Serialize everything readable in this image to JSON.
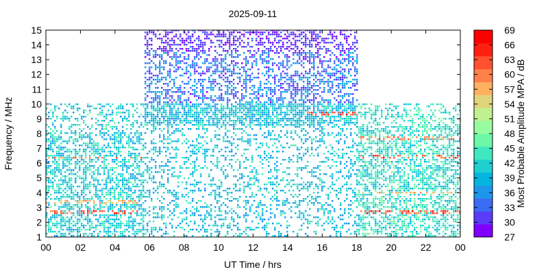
{
  "chart_data": {
    "type": "heatmap",
    "title": "2025-09-11",
    "xlabel": "UT Time / hrs",
    "ylabel": "Frequency / MHz",
    "xlim": [
      0,
      24
    ],
    "ylim": [
      1,
      15
    ],
    "x_ticks": [
      "00",
      "02",
      "04",
      "06",
      "08",
      "10",
      "12",
      "14",
      "16",
      "18",
      "20",
      "22",
      "00"
    ],
    "y_ticks": [
      "1",
      "2",
      "3",
      "4",
      "5",
      "6",
      "7",
      "8",
      "9",
      "10",
      "11",
      "12",
      "13",
      "14",
      "15"
    ],
    "colorbar": {
      "label": "Most Probable Amplitude MPA / dB",
      "range": [
        27,
        69
      ],
      "ticks": [
        "27",
        "30",
        "33",
        "36",
        "39",
        "42",
        "45",
        "48",
        "51",
        "54",
        "57",
        "60",
        "63",
        "66",
        "69"
      ],
      "colors": [
        "#8000ff",
        "#5a3cf8",
        "#3a6cf4",
        "#1e96eb",
        "#06b4e0",
        "#20d0d0",
        "#40e8c0",
        "#6cf8a8",
        "#98fca0",
        "#c0f090",
        "#e0d47c",
        "#ffb060",
        "#ff8048",
        "#ff5030",
        "#ff2010",
        "#ff0000"
      ]
    },
    "regions": [
      {
        "name": "night-low-band",
        "x": [
          0,
          5.6
        ],
        "y": [
          1,
          10
        ],
        "level_db": 41
      },
      {
        "name": "day-high-band",
        "x": [
          5.6,
          18
        ],
        "y": [
          10,
          15
        ],
        "level_db": 34
      },
      {
        "name": "day-mid-band",
        "x": [
          5.6,
          18
        ],
        "y": [
          1,
          10
        ],
        "level_db": 40
      },
      {
        "name": "evening-low-band",
        "x": [
          18,
          24
        ],
        "y": [
          1,
          10
        ],
        "level_db": 43
      }
    ],
    "hot_bands": [
      {
        "x": [
          0,
          5.5
        ],
        "y": [
          2.5,
          2.8
        ],
        "level_db": 63
      },
      {
        "x": [
          0,
          5.5
        ],
        "y": [
          3.2,
          3.4
        ],
        "level_db": 57
      },
      {
        "x": [
          0,
          5.5
        ],
        "y": [
          6.2,
          6.4
        ],
        "level_db": 60
      },
      {
        "x": [
          15,
          18
        ],
        "y": [
          9.2,
          9.4
        ],
        "level_db": 63
      },
      {
        "x": [
          18,
          24
        ],
        "y": [
          2.5,
          2.8
        ],
        "level_db": 63
      },
      {
        "x": [
          18,
          24
        ],
        "y": [
          6.2,
          6.5
        ],
        "level_db": 63
      },
      {
        "x": [
          18,
          24
        ],
        "y": [
          7.5,
          7.8
        ],
        "level_db": 60
      },
      {
        "x": [
          18,
          24
        ],
        "y": [
          3.8,
          4.0
        ],
        "level_db": 57
      }
    ],
    "grid": false,
    "legend": "colorbar-right"
  }
}
